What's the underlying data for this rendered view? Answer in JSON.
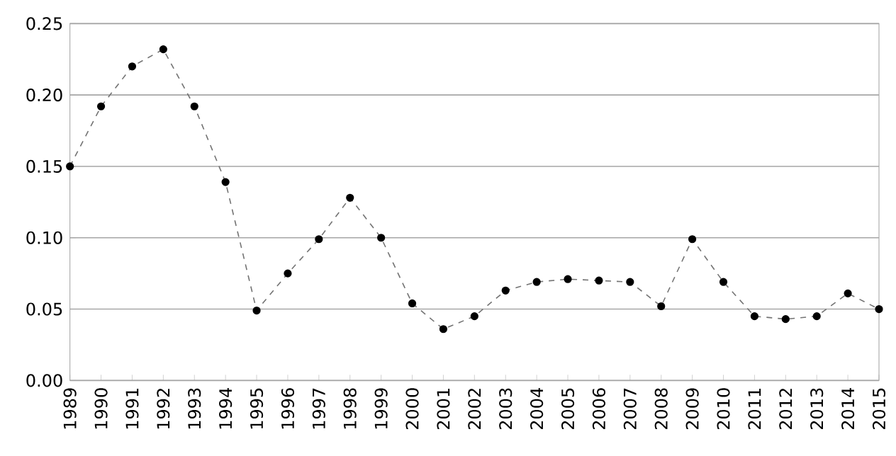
{
  "chart_data": {
    "type": "line",
    "categories": [
      "1989",
      "1990",
      "1991",
      "1992",
      "1993",
      "1994",
      "1995",
      "1996",
      "1997",
      "1998",
      "1999",
      "2000",
      "2001",
      "2002",
      "2003",
      "2004",
      "2005",
      "2006",
      "2007",
      "2008",
      "2009",
      "2010",
      "2011",
      "2012",
      "2013",
      "2014",
      "2015"
    ],
    "series": [
      {
        "color": "#000000",
        "values": [
          0.15,
          0.192,
          0.22,
          0.232,
          0.192,
          0.139,
          0.049,
          0.075,
          0.099,
          0.128,
          0.1,
          0.054,
          0.036,
          0.045,
          0.063,
          0.069,
          0.071,
          0.07,
          0.069,
          0.052,
          0.099,
          0.069,
          0.045,
          0.043,
          0.045,
          0.061,
          0.05
        ]
      }
    ],
    "ylim": [
      0,
      0.25
    ],
    "yticks": [
      {
        "value": 0,
        "label": "0.00"
      },
      {
        "value": 0.05,
        "label": "0.05"
      },
      {
        "value": 0.1,
        "label": "0.10"
      },
      {
        "value": 0.15,
        "label": "0.15"
      },
      {
        "value": 0.2,
        "label": "0.20"
      },
      {
        "value": 0.25,
        "label": "0.25"
      }
    ],
    "grid": "y",
    "marker": "circle",
    "line_style": "dashed"
  }
}
